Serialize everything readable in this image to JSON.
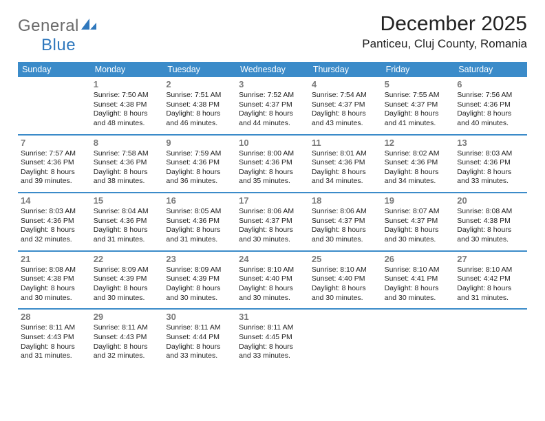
{
  "logo": {
    "general": "General",
    "blue": "Blue"
  },
  "title": "December 2025",
  "location": "Panticeu, Cluj County, Romania",
  "colors": {
    "accent": "#3b8bc9",
    "logo_gray": "#6a6a6a",
    "logo_blue": "#2f78bd",
    "daynum": "#7a7a7a",
    "text": "#222222",
    "bg": "#ffffff"
  },
  "dayNames": [
    "Sunday",
    "Monday",
    "Tuesday",
    "Wednesday",
    "Thursday",
    "Friday",
    "Saturday"
  ],
  "weeks": [
    [
      {
        "n": "",
        "sr": "",
        "ss": "",
        "dl": ""
      },
      {
        "n": "1",
        "sr": "7:50 AM",
        "ss": "4:38 PM",
        "dl": "8 hours and 48 minutes."
      },
      {
        "n": "2",
        "sr": "7:51 AM",
        "ss": "4:38 PM",
        "dl": "8 hours and 46 minutes."
      },
      {
        "n": "3",
        "sr": "7:52 AM",
        "ss": "4:37 PM",
        "dl": "8 hours and 44 minutes."
      },
      {
        "n": "4",
        "sr": "7:54 AM",
        "ss": "4:37 PM",
        "dl": "8 hours and 43 minutes."
      },
      {
        "n": "5",
        "sr": "7:55 AM",
        "ss": "4:37 PM",
        "dl": "8 hours and 41 minutes."
      },
      {
        "n": "6",
        "sr": "7:56 AM",
        "ss": "4:36 PM",
        "dl": "8 hours and 40 minutes."
      }
    ],
    [
      {
        "n": "7",
        "sr": "7:57 AM",
        "ss": "4:36 PM",
        "dl": "8 hours and 39 minutes."
      },
      {
        "n": "8",
        "sr": "7:58 AM",
        "ss": "4:36 PM",
        "dl": "8 hours and 38 minutes."
      },
      {
        "n": "9",
        "sr": "7:59 AM",
        "ss": "4:36 PM",
        "dl": "8 hours and 36 minutes."
      },
      {
        "n": "10",
        "sr": "8:00 AM",
        "ss": "4:36 PM",
        "dl": "8 hours and 35 minutes."
      },
      {
        "n": "11",
        "sr": "8:01 AM",
        "ss": "4:36 PM",
        "dl": "8 hours and 34 minutes."
      },
      {
        "n": "12",
        "sr": "8:02 AM",
        "ss": "4:36 PM",
        "dl": "8 hours and 34 minutes."
      },
      {
        "n": "13",
        "sr": "8:03 AM",
        "ss": "4:36 PM",
        "dl": "8 hours and 33 minutes."
      }
    ],
    [
      {
        "n": "14",
        "sr": "8:03 AM",
        "ss": "4:36 PM",
        "dl": "8 hours and 32 minutes."
      },
      {
        "n": "15",
        "sr": "8:04 AM",
        "ss": "4:36 PM",
        "dl": "8 hours and 31 minutes."
      },
      {
        "n": "16",
        "sr": "8:05 AM",
        "ss": "4:36 PM",
        "dl": "8 hours and 31 minutes."
      },
      {
        "n": "17",
        "sr": "8:06 AM",
        "ss": "4:37 PM",
        "dl": "8 hours and 30 minutes."
      },
      {
        "n": "18",
        "sr": "8:06 AM",
        "ss": "4:37 PM",
        "dl": "8 hours and 30 minutes."
      },
      {
        "n": "19",
        "sr": "8:07 AM",
        "ss": "4:37 PM",
        "dl": "8 hours and 30 minutes."
      },
      {
        "n": "20",
        "sr": "8:08 AM",
        "ss": "4:38 PM",
        "dl": "8 hours and 30 minutes."
      }
    ],
    [
      {
        "n": "21",
        "sr": "8:08 AM",
        "ss": "4:38 PM",
        "dl": "8 hours and 30 minutes."
      },
      {
        "n": "22",
        "sr": "8:09 AM",
        "ss": "4:39 PM",
        "dl": "8 hours and 30 minutes."
      },
      {
        "n": "23",
        "sr": "8:09 AM",
        "ss": "4:39 PM",
        "dl": "8 hours and 30 minutes."
      },
      {
        "n": "24",
        "sr": "8:10 AM",
        "ss": "4:40 PM",
        "dl": "8 hours and 30 minutes."
      },
      {
        "n": "25",
        "sr": "8:10 AM",
        "ss": "4:40 PM",
        "dl": "8 hours and 30 minutes."
      },
      {
        "n": "26",
        "sr": "8:10 AM",
        "ss": "4:41 PM",
        "dl": "8 hours and 30 minutes."
      },
      {
        "n": "27",
        "sr": "8:10 AM",
        "ss": "4:42 PM",
        "dl": "8 hours and 31 minutes."
      }
    ],
    [
      {
        "n": "28",
        "sr": "8:11 AM",
        "ss": "4:43 PM",
        "dl": "8 hours and 31 minutes."
      },
      {
        "n": "29",
        "sr": "8:11 AM",
        "ss": "4:43 PM",
        "dl": "8 hours and 32 minutes."
      },
      {
        "n": "30",
        "sr": "8:11 AM",
        "ss": "4:44 PM",
        "dl": "8 hours and 33 minutes."
      },
      {
        "n": "31",
        "sr": "8:11 AM",
        "ss": "4:45 PM",
        "dl": "8 hours and 33 minutes."
      },
      {
        "n": "",
        "sr": "",
        "ss": "",
        "dl": ""
      },
      {
        "n": "",
        "sr": "",
        "ss": "",
        "dl": ""
      },
      {
        "n": "",
        "sr": "",
        "ss": "",
        "dl": ""
      }
    ]
  ],
  "labels": {
    "sunrise": "Sunrise: ",
    "sunset": "Sunset: ",
    "daylight": "Daylight: "
  }
}
